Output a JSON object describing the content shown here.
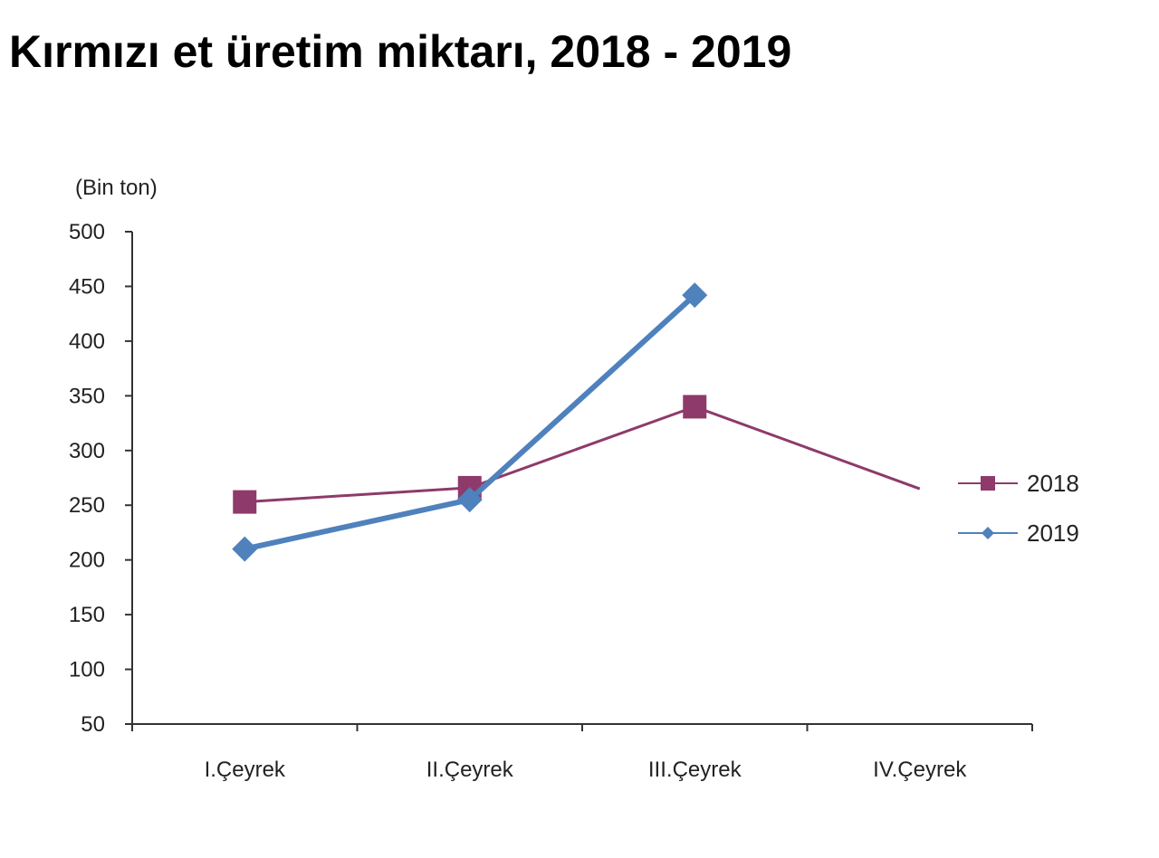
{
  "page": {
    "title": "Kırmızı et üretim miktarı, 2018 - 2019"
  },
  "chart_data": {
    "type": "line",
    "title": "Kırmızı et üretim miktarı, 2018 - 2019",
    "unit_label": "(Bin ton)",
    "xlabel": "",
    "ylabel": "",
    "categories": [
      "I.Çeyrek",
      "II.Çeyrek",
      "III.Çeyrek",
      "IV.Çeyrek"
    ],
    "ylim": [
      50,
      500
    ],
    "yticks": [
      50,
      100,
      150,
      200,
      250,
      300,
      350,
      400,
      450,
      500
    ],
    "grid": false,
    "legend_position": "right",
    "series": [
      {
        "name": "2018",
        "values": [
          253,
          266,
          340,
          265
        ],
        "color": "#8e3a6a",
        "marker": "square"
      },
      {
        "name": "2019",
        "values": [
          210,
          255,
          442,
          null
        ],
        "color": "#4f81bd",
        "marker": "diamond"
      }
    ]
  }
}
